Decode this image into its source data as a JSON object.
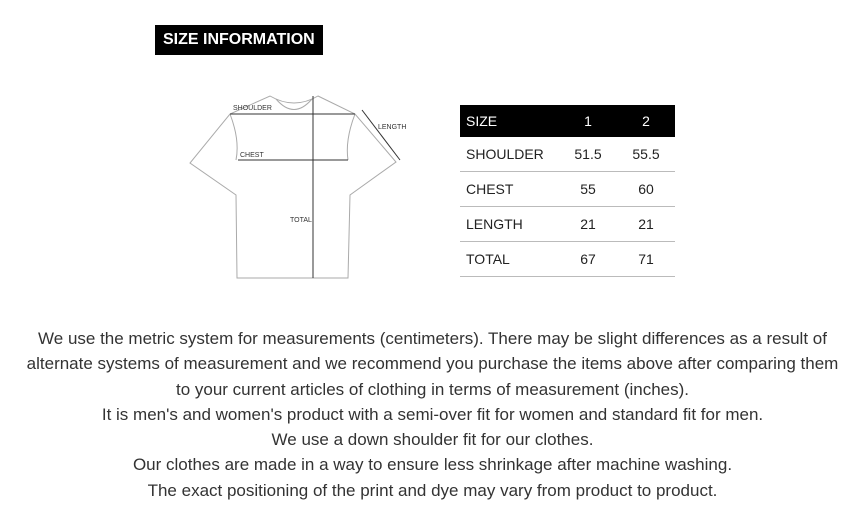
{
  "title": "SIZE INFORMATION",
  "diagram": {
    "labels": {
      "shoulder": "SHOULDER",
      "chest": "CHEST",
      "length": "LENGTH",
      "total": "TOTAL"
    }
  },
  "table": {
    "headers": [
      "SIZE",
      "1",
      "2"
    ],
    "rows": [
      [
        "SHOULDER",
        "51.5",
        "55.5"
      ],
      [
        "CHEST",
        "55",
        "60"
      ],
      [
        "LENGTH",
        "21",
        "21"
      ],
      [
        "TOTAL",
        "67",
        "71"
      ]
    ]
  },
  "description": [
    "We use the metric system for measurements (centimeters). There may be slight differences as a result of alternate systems of measurement and we recommend you purchase the items above after comparing them to your current articles of clothing in terms of measurement (inches).",
    "It is men's and women's product with a semi-over fit for women and standard fit for men.",
    "We use a down shoulder fit for our clothes.",
    "Our clothes are made in a way to ensure less shrinkage after machine washing.",
    "The exact positioning of the print  and dye may vary from product to product."
  ]
}
